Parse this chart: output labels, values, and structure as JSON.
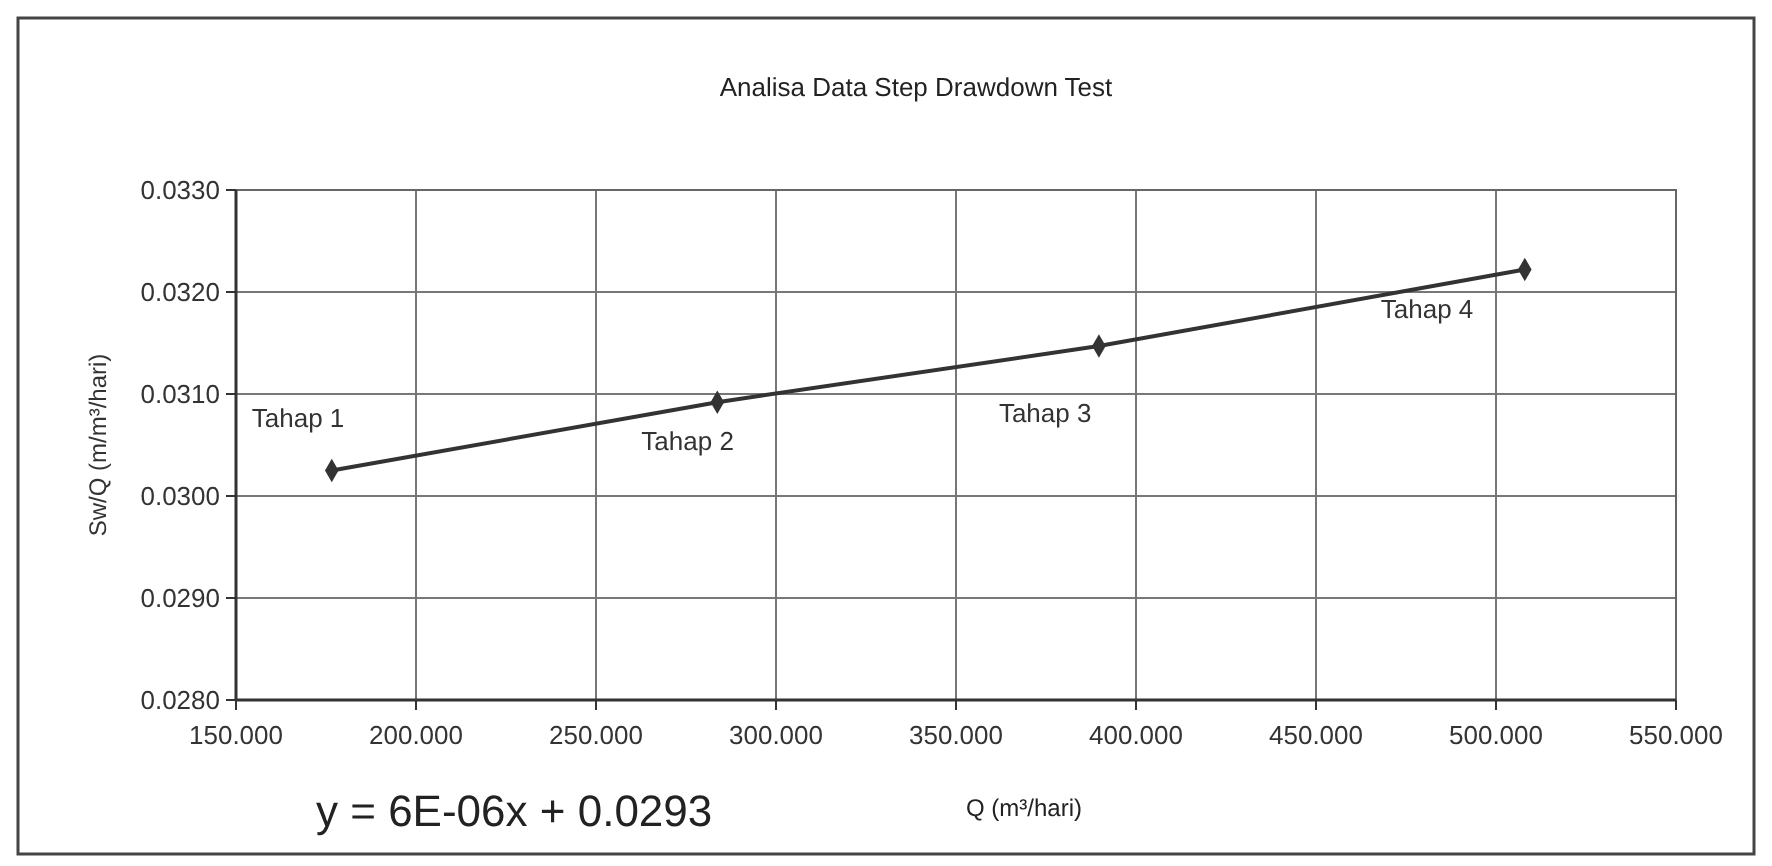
{
  "chart_data": {
    "type": "line",
    "title": "Analisa Data Step Drawdown Test",
    "xlabel": "Q (m³/hari)",
    "ylabel": "Sw/Q (m/m³/hari)",
    "x": [
      176.6,
      283.7,
      389.7,
      508
    ],
    "series": [
      {
        "color": "#333333",
        "values": [
          0.03025,
          0.03092,
          0.03147,
          0.03222
        ]
      }
    ],
    "xlim": [
      150,
      550
    ],
    "xticks": [
      {
        "value": 150,
        "label": "150.000"
      },
      {
        "value": 200,
        "label": "200.000"
      },
      {
        "value": 250,
        "label": "250.000"
      },
      {
        "value": 300,
        "label": "300.000"
      },
      {
        "value": 350,
        "label": "350.000"
      },
      {
        "value": 400,
        "label": "400.000"
      },
      {
        "value": 450,
        "label": "450.000"
      },
      {
        "value": 500,
        "label": "500.000"
      },
      {
        "value": 550,
        "label": "550.000"
      }
    ],
    "ylim": [
      0.028,
      0.033
    ],
    "yticks": [
      {
        "value": 0.028,
        "label": "0.0280"
      },
      {
        "value": 0.029,
        "label": "0.0290"
      },
      {
        "value": 0.03,
        "label": "0.0300"
      },
      {
        "value": 0.031,
        "label": "0.0310"
      },
      {
        "value": 0.032,
        "label": "0.0320"
      },
      {
        "value": 0.033,
        "label": "0.0330"
      }
    ],
    "grid": true,
    "marker": "diamond",
    "line_style": "solid",
    "annotations": [
      {
        "text": "Tahap 1",
        "x": 176.6,
        "y": 0.03025
      },
      {
        "text": "Tahap 2",
        "x": 283.7,
        "y": 0.03092
      },
      {
        "text": "Tahap 3",
        "x": 389.7,
        "y": 0.03147
      },
      {
        "text": "Tahap 4",
        "x": 508,
        "y": 0.03222
      },
      "y = 6E-06x + 0.0293"
    ]
  }
}
